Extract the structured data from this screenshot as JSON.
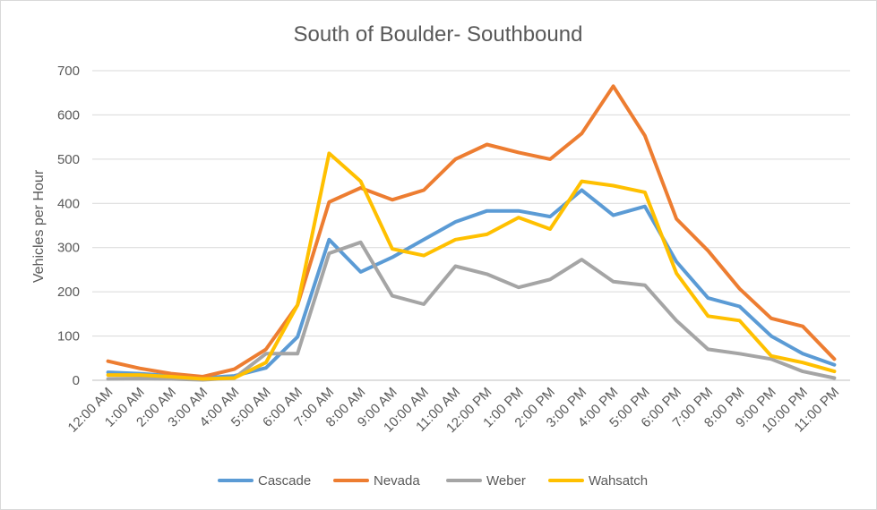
{
  "chart_data": {
    "type": "line",
    "title": "South of Boulder- Southbound",
    "xlabel": "",
    "ylabel": "Vehicles per Hour",
    "ylim": [
      0,
      700
    ],
    "yticks": [
      0,
      100,
      200,
      300,
      400,
      500,
      600,
      700
    ],
    "grid": true,
    "legend": "bottom",
    "categories": [
      "12:00 AM",
      "1:00 AM",
      "2:00 AM",
      "3:00 AM",
      "4:00 AM",
      "5:00 AM",
      "6:00 AM",
      "7:00 AM",
      "8:00 AM",
      "9:00 AM",
      "10:00 AM",
      "11:00 AM",
      "12:00 PM",
      "1:00 PM",
      "2:00 PM",
      "3:00 PM",
      "4:00 PM",
      "5:00 PM",
      "6:00 PM",
      "7:00 PM",
      "8:00 PM",
      "9:00 PM",
      "10:00 PM",
      "11:00 PM"
    ],
    "series": [
      {
        "name": "Cascade",
        "color": "#5B9BD5",
        "values": [
          18,
          15,
          10,
          5,
          10,
          28,
          98,
          318,
          245,
          278,
          318,
          358,
          383,
          383,
          370,
          430,
          373,
          393,
          268,
          186,
          167,
          100,
          60,
          35
        ]
      },
      {
        "name": "Nevada",
        "color": "#ED7D31",
        "values": [
          43,
          27,
          15,
          8,
          25,
          70,
          170,
          403,
          435,
          408,
          430,
          500,
          533,
          515,
          500,
          558,
          665,
          553,
          365,
          293,
          207,
          140,
          122,
          48
        ]
      },
      {
        "name": "Weber",
        "color": "#A5A5A5",
        "values": [
          3,
          4,
          3,
          1,
          5,
          60,
          60,
          287,
          312,
          191,
          172,
          258,
          240,
          210,
          228,
          273,
          223,
          215,
          135,
          70,
          60,
          48,
          20,
          5
        ]
      },
      {
        "name": "Wahsatch",
        "color": "#FFC000",
        "values": [
          12,
          12,
          8,
          3,
          5,
          40,
          170,
          513,
          450,
          297,
          282,
          318,
          330,
          368,
          342,
          450,
          440,
          425,
          242,
          145,
          135,
          55,
          40,
          20
        ]
      }
    ]
  }
}
